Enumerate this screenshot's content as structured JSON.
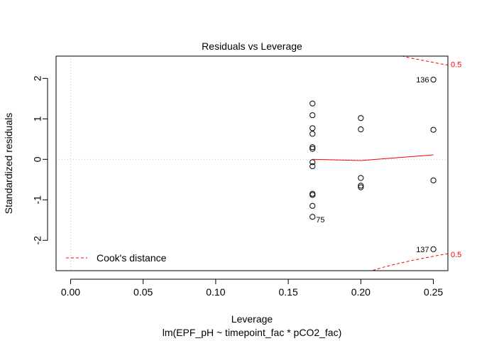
{
  "chart_data": {
    "type": "scatter",
    "title": "Residuals vs Leverage",
    "xlabel": "Leverage",
    "sublabel": "lm(EPF_pH ~ timepoint_fac * pCO2_fac)",
    "ylabel": "Standardized residuals",
    "xlim": [
      -0.01,
      0.26
    ],
    "ylim": [
      -2.75,
      2.55
    ],
    "xticks": [
      "0.00",
      "0.05",
      "0.10",
      "0.15",
      "0.20",
      "0.25"
    ],
    "xtick_values": [
      0.0,
      0.05,
      0.1,
      0.15,
      0.2,
      0.25
    ],
    "yticks": [
      "-2",
      "-1",
      "0",
      "1",
      "2"
    ],
    "ytick_values": [
      -2,
      -1,
      0,
      1,
      2
    ],
    "grid": "dotted reference lines at x = 0 and y = 0",
    "points": [
      {
        "x": 0.1667,
        "y": 1.38
      },
      {
        "x": 0.1667,
        "y": 1.09
      },
      {
        "x": 0.1667,
        "y": 0.77
      },
      {
        "x": 0.1667,
        "y": 0.63
      },
      {
        "x": 0.1667,
        "y": 0.3
      },
      {
        "x": 0.1667,
        "y": 0.26
      },
      {
        "x": 0.1667,
        "y": -0.07
      },
      {
        "x": 0.1667,
        "y": -0.17
      },
      {
        "x": 0.1667,
        "y": -0.85
      },
      {
        "x": 0.1667,
        "y": -0.88
      },
      {
        "x": 0.1667,
        "y": -1.15
      },
      {
        "x": 0.1667,
        "y": -1.42,
        "label": "75"
      },
      {
        "x": 0.2,
        "y": 1.02
      },
      {
        "x": 0.2,
        "y": 0.74
      },
      {
        "x": 0.2,
        "y": -0.46
      },
      {
        "x": 0.2,
        "y": -0.65
      },
      {
        "x": 0.2,
        "y": -0.69
      },
      {
        "x": 0.25,
        "y": 1.97,
        "label": "136"
      },
      {
        "x": 0.25,
        "y": 0.73
      },
      {
        "x": 0.25,
        "y": -0.52
      },
      {
        "x": 0.25,
        "y": -2.22,
        "label": "137"
      }
    ],
    "smooth_line": {
      "color": "#ff0000",
      "x": [
        0.1667,
        0.2,
        0.25
      ],
      "y": [
        0.0,
        -0.03,
        0.11
      ]
    },
    "cooks_distance": {
      "color": "#ff0000",
      "level_label": "0.5",
      "upper_x": [
        0.205,
        0.215,
        0.225,
        0.235,
        0.245,
        0.255,
        0.26
      ],
      "upper_y": [
        2.78,
        2.67,
        2.58,
        2.5,
        2.43,
        2.36,
        2.33
      ],
      "lower_x": [
        0.205,
        0.215,
        0.225,
        0.235,
        0.245,
        0.255,
        0.26
      ],
      "lower_y": [
        -2.78,
        -2.67,
        -2.58,
        -2.5,
        -2.43,
        -2.36,
        -2.33
      ],
      "upper_label_y": 2.35,
      "lower_label_y": -2.35
    },
    "legend": {
      "position": "bottom-left",
      "entries": [
        {
          "label": "Cook's distance",
          "color": "#ff0000",
          "style": "dashed"
        }
      ]
    }
  }
}
